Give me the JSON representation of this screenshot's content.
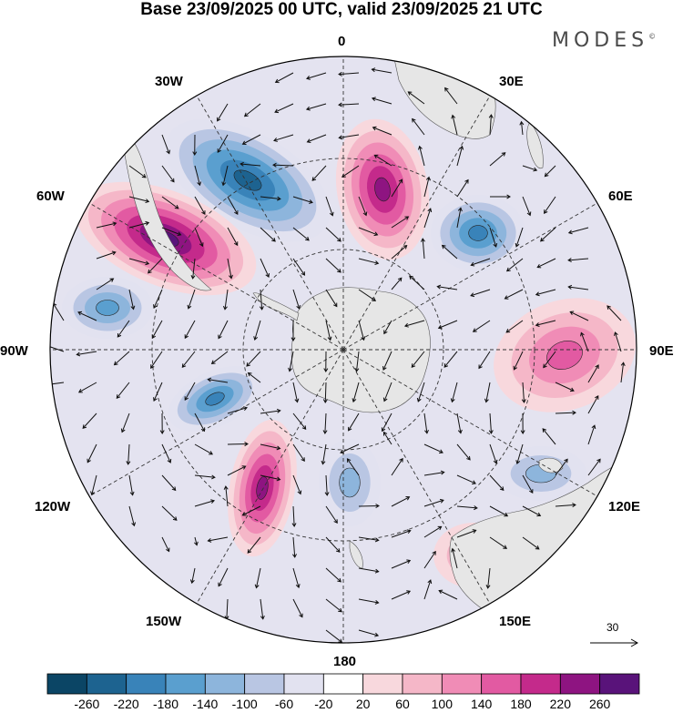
{
  "header": {
    "title": "Base 23/09/2025 00 UTC, valid 23/09/2025 21 UTC",
    "brand": "MODES",
    "brand_mark": "©"
  },
  "map": {
    "projection": "south-polar-stereographic",
    "longitude_labels": {
      "top": "0",
      "top_right": "30E",
      "upper_right": "60E",
      "right": "90E",
      "lower_right": "120E",
      "bottom_right": "150E",
      "bottom": "180",
      "bottom_left": "150W",
      "lower_left": "120W",
      "left": "90W",
      "upper_left": "60W",
      "top_left": "30W"
    },
    "wind_reference_vector": "30"
  },
  "colorbar": {
    "ticks": [
      "-260",
      "-220",
      "-180",
      "-140",
      "-100",
      "-60",
      "-20",
      "20",
      "60",
      "100",
      "140",
      "180",
      "220",
      "260"
    ],
    "colors": [
      "#0b4565",
      "#1d6390",
      "#3983b9",
      "#5a9fcf",
      "#8db5dc",
      "#b9c6e3",
      "#e2e2f0",
      "#ffffff",
      "#f8d8dd",
      "#f5b7c8",
      "#f08cb6",
      "#e25aa2",
      "#c42a8b",
      "#8e1481",
      "#59137a"
    ]
  },
  "anomalies": [
    {
      "name": "blue-south-atlantic",
      "value": -220
    },
    {
      "name": "magenta-drake",
      "value": 260
    },
    {
      "name": "magenta-weddell-north",
      "value": 220
    },
    {
      "name": "blue-east-atlantic",
      "value": -180
    },
    {
      "name": "pink-indian-ocean",
      "value": 140
    },
    {
      "name": "blue-southeast-pacific",
      "value": -140
    },
    {
      "name": "blue-bellingshausen",
      "value": -180
    },
    {
      "name": "magenta-amundsen",
      "value": 220
    },
    {
      "name": "blue-ross-sea",
      "value": -100
    },
    {
      "name": "pink-australia",
      "value": 100
    },
    {
      "name": "blue-southern-ocean-120e",
      "value": -100
    }
  ]
}
